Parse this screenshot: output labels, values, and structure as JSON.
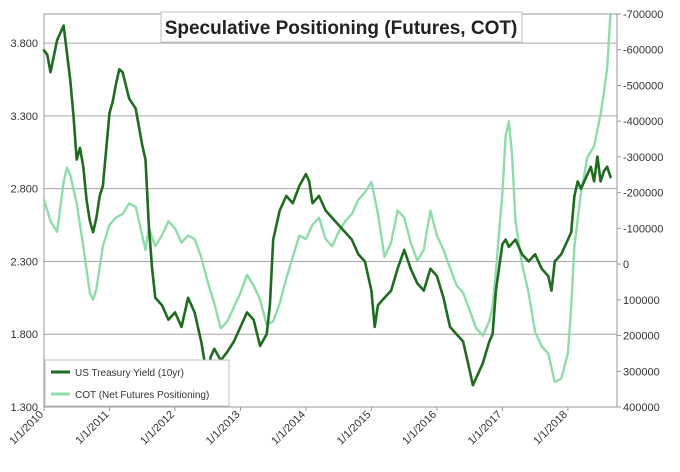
{
  "chart_data": {
    "type": "line",
    "title": "Speculative Positioning (Futures, COT)",
    "xlabel": "",
    "ylabel": "",
    "x_ticks": [
      "1/1/2010",
      "1/1/2011",
      "1/1/2012",
      "1/1/2013",
      "1/1/2014",
      "1/1/2015",
      "1/1/2016",
      "1/1/2017",
      "1/1/2018"
    ],
    "x_range": [
      2010.0,
      2018.75
    ],
    "y_left": {
      "range": [
        1.3,
        4.0
      ],
      "ticks": [
        "1.300",
        "1.800",
        "2.300",
        "2.800",
        "3.300",
        "3.800"
      ],
      "tick_values": [
        1.3,
        1.8,
        2.3,
        2.8,
        3.3,
        3.8
      ]
    },
    "y_right": {
      "range": [
        400000,
        -700000
      ],
      "inverted": true,
      "ticks": [
        "-700000",
        "-600000",
        "-500000",
        "-400000",
        "-300000",
        "-200000",
        "-100000",
        "0",
        "100000",
        "200000",
        "300000",
        "400000"
      ],
      "tick_values": [
        -700000,
        -600000,
        -500000,
        -400000,
        -300000,
        -200000,
        -100000,
        0,
        100000,
        200000,
        300000,
        400000
      ]
    },
    "grid": true,
    "legend_position": "bottom-left",
    "series": [
      {
        "name": "US Treasury Yield (10yr)",
        "axis": "left",
        "color": "#1f6b1f",
        "x": [
          2010.0,
          2010.05,
          2010.1,
          2010.2,
          2010.3,
          2010.4,
          2010.45,
          2010.5,
          2010.55,
          2010.6,
          2010.65,
          2010.7,
          2010.75,
          2010.8,
          2010.85,
          2010.9,
          2011.0,
          2011.05,
          2011.1,
          2011.15,
          2011.2,
          2011.3,
          2011.4,
          2011.5,
          2011.55,
          2011.6,
          2011.65,
          2011.7,
          2011.8,
          2011.9,
          2012.0,
          2012.1,
          2012.2,
          2012.3,
          2012.4,
          2012.45,
          2012.5,
          2012.55,
          2012.6,
          2012.7,
          2012.8,
          2012.9,
          2013.0,
          2013.1,
          2013.2,
          2013.3,
          2013.4,
          2013.45,
          2013.5,
          2013.6,
          2013.7,
          2013.8,
          2013.9,
          2014.0,
          2014.05,
          2014.1,
          2014.2,
          2014.3,
          2014.4,
          2014.5,
          2014.6,
          2014.7,
          2014.8,
          2014.9,
          2015.0,
          2015.05,
          2015.1,
          2015.2,
          2015.3,
          2015.4,
          2015.5,
          2015.6,
          2015.7,
          2015.8,
          2015.9,
          2016.0,
          2016.1,
          2016.2,
          2016.3,
          2016.4,
          2016.5,
          2016.55,
          2016.6,
          2016.7,
          2016.8,
          2016.85,
          2016.9,
          2017.0,
          2017.05,
          2017.1,
          2017.2,
          2017.3,
          2017.4,
          2017.5,
          2017.6,
          2017.7,
          2017.75,
          2017.8,
          2017.9,
          2018.0,
          2018.05,
          2018.1,
          2018.15,
          2018.2,
          2018.3,
          2018.35,
          2018.4,
          2018.45,
          2018.5,
          2018.55,
          2018.6,
          2018.65
        ],
        "values": [
          3.75,
          3.72,
          3.6,
          3.82,
          3.92,
          3.55,
          3.3,
          3.0,
          3.08,
          2.95,
          2.72,
          2.58,
          2.5,
          2.6,
          2.75,
          2.82,
          3.32,
          3.4,
          3.52,
          3.62,
          3.6,
          3.42,
          3.35,
          3.1,
          3.0,
          2.55,
          2.25,
          2.05,
          2.0,
          1.9,
          1.95,
          1.85,
          2.05,
          1.95,
          1.75,
          1.62,
          1.55,
          1.65,
          1.7,
          1.62,
          1.68,
          1.75,
          1.85,
          1.95,
          1.9,
          1.72,
          1.8,
          2.0,
          2.45,
          2.65,
          2.75,
          2.7,
          2.82,
          2.9,
          2.85,
          2.7,
          2.75,
          2.65,
          2.6,
          2.55,
          2.5,
          2.45,
          2.35,
          2.3,
          2.1,
          1.85,
          2.0,
          2.05,
          2.1,
          2.25,
          2.38,
          2.25,
          2.15,
          2.1,
          2.25,
          2.2,
          2.05,
          1.85,
          1.8,
          1.75,
          1.55,
          1.45,
          1.5,
          1.6,
          1.75,
          1.8,
          2.1,
          2.42,
          2.45,
          2.4,
          2.45,
          2.35,
          2.3,
          2.35,
          2.25,
          2.2,
          2.1,
          2.3,
          2.35,
          2.45,
          2.5,
          2.75,
          2.85,
          2.8,
          2.9,
          2.95,
          2.85,
          3.02,
          2.85,
          2.92,
          2.95,
          2.88
        ]
      },
      {
        "name": "COT (Net Futures Positioning)",
        "axis": "right",
        "color": "#8fdcaa",
        "x": [
          2010.0,
          2010.05,
          2010.1,
          2010.2,
          2010.3,
          2010.35,
          2010.4,
          2010.5,
          2010.6,
          2010.7,
          2010.75,
          2010.8,
          2010.9,
          2011.0,
          2011.1,
          2011.2,
          2011.3,
          2011.4,
          2011.45,
          2011.5,
          2011.55,
          2011.6,
          2011.7,
          2011.8,
          2011.9,
          2012.0,
          2012.1,
          2012.2,
          2012.3,
          2012.4,
          2012.5,
          2012.6,
          2012.7,
          2012.8,
          2012.9,
          2013.0,
          2013.1,
          2013.2,
          2013.3,
          2013.4,
          2013.5,
          2013.6,
          2013.7,
          2013.8,
          2013.9,
          2014.0,
          2014.1,
          2014.2,
          2014.3,
          2014.4,
          2014.5,
          2014.6,
          2014.7,
          2014.8,
          2014.9,
          2015.0,
          2015.1,
          2015.2,
          2015.3,
          2015.4,
          2015.5,
          2015.6,
          2015.7,
          2015.8,
          2015.9,
          2016.0,
          2016.1,
          2016.2,
          2016.3,
          2016.4,
          2016.5,
          2016.6,
          2016.7,
          2016.8,
          2016.85,
          2016.9,
          2017.0,
          2017.05,
          2017.1,
          2017.15,
          2017.2,
          2017.3,
          2017.4,
          2017.5,
          2017.6,
          2017.7,
          2017.8,
          2017.9,
          2018.0,
          2018.05,
          2018.1,
          2018.2,
          2018.3,
          2018.4,
          2018.5,
          2018.55,
          2018.6,
          2018.65
        ],
        "values": [
          -180000,
          -150000,
          -120000,
          -90000,
          -230000,
          -270000,
          -250000,
          -170000,
          -50000,
          80000,
          100000,
          70000,
          -50000,
          -110000,
          -130000,
          -140000,
          -170000,
          -160000,
          -120000,
          -80000,
          -40000,
          -100000,
          -50000,
          -80000,
          -120000,
          -100000,
          -60000,
          -80000,
          -70000,
          -20000,
          50000,
          110000,
          180000,
          160000,
          120000,
          80000,
          30000,
          60000,
          100000,
          170000,
          160000,
          110000,
          40000,
          -20000,
          -80000,
          -70000,
          -110000,
          -130000,
          -70000,
          -50000,
          -90000,
          -120000,
          -140000,
          -180000,
          -200000,
          -230000,
          -140000,
          -20000,
          -60000,
          -150000,
          -130000,
          -60000,
          -10000,
          -40000,
          -150000,
          -80000,
          -40000,
          10000,
          60000,
          80000,
          130000,
          180000,
          200000,
          160000,
          120000,
          20000,
          -200000,
          -360000,
          -400000,
          -300000,
          -120000,
          0,
          80000,
          190000,
          230000,
          250000,
          330000,
          320000,
          250000,
          120000,
          -50000,
          -200000,
          -300000,
          -330000,
          -420000,
          -480000,
          -550000,
          -700000
        ]
      }
    ]
  }
}
